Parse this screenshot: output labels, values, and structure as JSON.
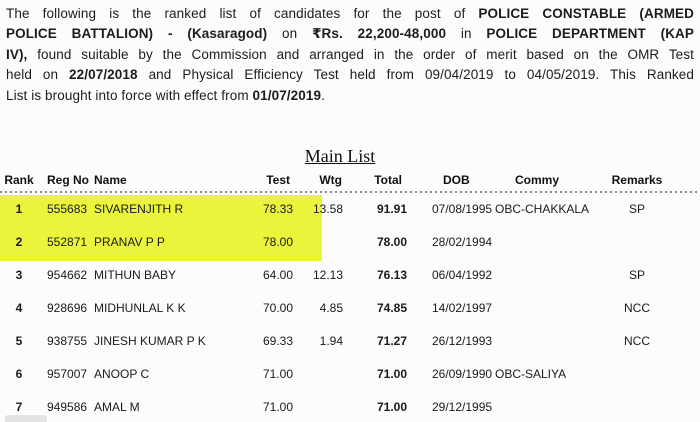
{
  "document": {
    "background": "#fcfcfc",
    "text_color": "#1c1c1c",
    "highlight_color": "#e9f43a",
    "intro_lines": [
      {
        "justify": true,
        "segments": [
          {
            "text": "The following is the ranked list of candidates for the post of ",
            "bold": false
          },
          {
            "text": "POLICE CONSTABLE (ARMED",
            "bold": true
          }
        ]
      },
      {
        "justify": true,
        "segments": [
          {
            "text": "POLICE BATTALION) - (Kasaragod)",
            "bold": true
          },
          {
            "text": " on ",
            "bold": false
          },
          {
            "text": "₹Rs. 22,200-48,000",
            "bold": true
          },
          {
            "text": " in ",
            "bold": false
          },
          {
            "text": "POLICE DEPARTMENT (KAP",
            "bold": true
          }
        ]
      },
      {
        "justify": true,
        "segments": [
          {
            "text": "IV),",
            "bold": true
          },
          {
            "text": " found suitable by the Commission and arranged in the order of merit based on the OMR Test",
            "bold": false
          }
        ]
      },
      {
        "justify": true,
        "segments": [
          {
            "text": "held on ",
            "bold": false
          },
          {
            "text": "22/07/2018",
            "bold": true
          },
          {
            "text": " and Physical Efficiency Test held from 09/04/2019 to 04/05/2019. This Ranked",
            "bold": false
          }
        ]
      },
      {
        "justify": false,
        "segments": [
          {
            "text": "List is brought into force with effect from ",
            "bold": false
          },
          {
            "text": "01/07/2019",
            "bold": true
          },
          {
            "text": ".",
            "bold": false
          }
        ]
      }
    ],
    "main_list": {
      "title": "Main List",
      "columns": [
        {
          "key": "rank",
          "label": "Rank"
        },
        {
          "key": "regno",
          "label": "Reg No"
        },
        {
          "key": "name",
          "label": "Name"
        },
        {
          "key": "test",
          "label": "Test"
        },
        {
          "key": "wtg",
          "label": "Wtg"
        },
        {
          "key": "total",
          "label": "Total"
        },
        {
          "key": "dob",
          "label": "DOB"
        },
        {
          "key": "commy",
          "label": "Commy"
        },
        {
          "key": "remarks",
          "label": "Remarks"
        }
      ],
      "rows": [
        {
          "rank": "1",
          "regno": "555683",
          "name": "SIVARENJITH R",
          "test": "78.33",
          "wtg": "13.58",
          "total": "91.91",
          "dob": "07/08/1995",
          "commy": "OBC-CHAKKALA",
          "remarks": "SP",
          "highlighted": true
        },
        {
          "rank": "2",
          "regno": "552871",
          "name": "PRANAV P P",
          "test": "78.00",
          "wtg": "",
          "total": "78.00",
          "dob": "28/02/1994",
          "commy": "",
          "remarks": "",
          "highlighted": true
        },
        {
          "rank": "3",
          "regno": "954662",
          "name": "MITHUN BABY",
          "test": "64.00",
          "wtg": "12.13",
          "total": "76.13",
          "dob": "06/04/1992",
          "commy": "",
          "remarks": "SP",
          "highlighted": false
        },
        {
          "rank": "4",
          "regno": "928696",
          "name": "MIDHUNLAL K K",
          "test": "70.00",
          "wtg": "4.85",
          "total": "74.85",
          "dob": "14/02/1997",
          "commy": "",
          "remarks": "NCC",
          "highlighted": false
        },
        {
          "rank": "5",
          "regno": "938755",
          "name": "JINESH KUMAR P K",
          "test": "69.33",
          "wtg": "1.94",
          "total": "71.27",
          "dob": "26/12/1993",
          "commy": "",
          "remarks": "NCC",
          "highlighted": false
        },
        {
          "rank": "6",
          "regno": "957007",
          "name": "ANOOP C",
          "test": "71.00",
          "wtg": "",
          "total": "71.00",
          "dob": "26/09/1990",
          "commy": "OBC-SALIYA",
          "remarks": "",
          "highlighted": false
        },
        {
          "rank": "7",
          "regno": "949586",
          "name": "AMAL M",
          "test": "71.00",
          "wtg": "",
          "total": "71.00",
          "dob": "29/12/1995",
          "commy": "",
          "remarks": "",
          "highlighted": false
        }
      ]
    }
  }
}
